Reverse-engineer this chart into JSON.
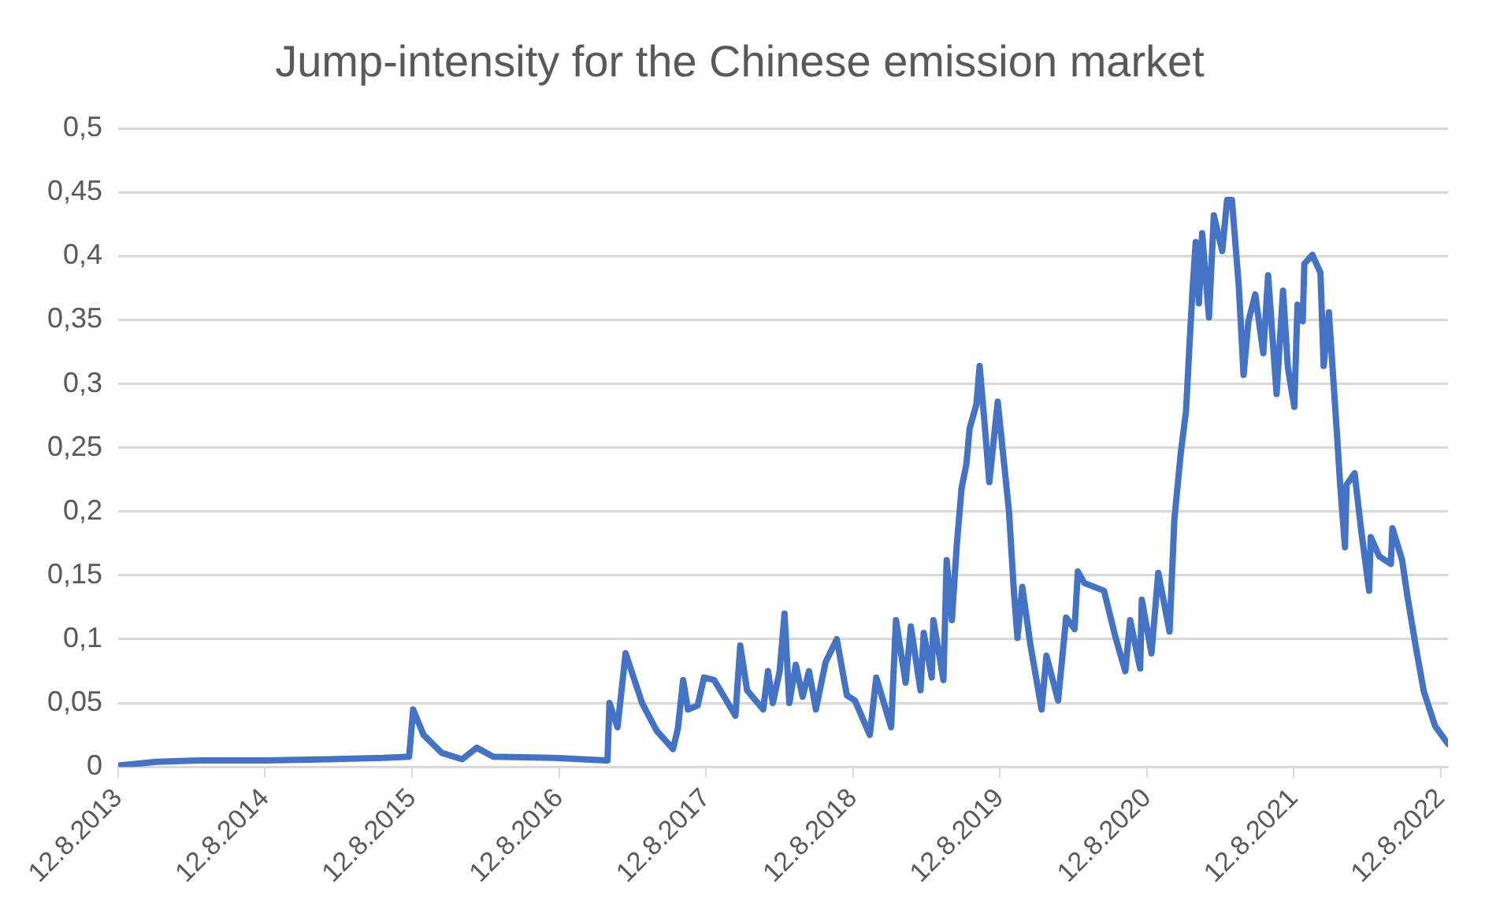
{
  "chart_data": {
    "type": "line",
    "title": "Jump-intensity for the Chinese emission market",
    "color": "#4472c4",
    "grid": "y",
    "x": [
      "2013-08-12",
      "2013-11-15",
      "2014-03-01",
      "2014-08-12",
      "2015-01-15",
      "2015-06-01",
      "2015-08-05",
      "2015-08-15",
      "2015-09-10",
      "2015-10-25",
      "2015-12-15",
      "2016-01-20",
      "2016-03-01",
      "2016-08-01",
      "2016-12-10",
      "2016-12-15",
      "2017-01-04",
      "2017-01-24",
      "2017-03-06",
      "2017-04-12",
      "2017-05-22",
      "2017-06-03",
      "2017-06-16",
      "2017-06-28",
      "2017-07-22",
      "2017-08-07",
      "2017-09-01",
      "2017-09-26",
      "2017-10-24",
      "2017-11-05",
      "2017-11-22",
      "2018-01-01",
      "2018-01-13",
      "2018-01-25",
      "2018-02-11",
      "2018-02-23",
      "2018-03-07",
      "2018-03-23",
      "2018-04-09",
      "2018-04-25",
      "2018-05-12",
      "2018-06-05",
      "2018-07-03",
      "2018-07-28",
      "2018-08-17",
      "2018-09-23",
      "2018-10-09",
      "2018-11-15",
      "2018-11-27",
      "2018-12-21",
      "2019-01-03",
      "2019-01-27",
      "2019-02-04",
      "2019-02-24",
      "2019-02-28",
      "2019-03-25",
      "2019-04-02",
      "2019-04-15",
      "2019-04-27",
      "2019-05-09",
      "2019-05-21",
      "2019-05-29",
      "2019-06-15",
      "2019-06-23",
      "2019-07-05",
      "2019-07-17",
      "2019-08-07",
      "2019-09-04",
      "2019-09-16",
      "2019-09-25",
      "2019-10-07",
      "2019-10-27",
      "2019-11-24",
      "2019-12-06",
      "2020-01-04",
      "2020-01-24",
      "2020-02-14",
      "2020-02-22",
      "2020-03-09",
      "2020-04-27",
      "2020-05-26",
      "2020-06-19",
      "2020-07-01",
      "2020-07-26",
      "2020-07-30",
      "2020-08-23",
      "2020-09-09",
      "2020-10-07",
      "2020-10-19",
      "2020-11-04",
      "2020-11-17",
      "2020-11-25",
      "2020-12-03",
      "2020-12-11",
      "2020-12-19",
      "2020-12-27",
      "2021-01-13",
      "2021-01-25",
      "2021-02-15",
      "2021-02-27",
      "2021-03-11",
      "2021-03-28",
      "2021-04-09",
      "2021-04-21",
      "2021-05-08",
      "2021-05-28",
      "2021-06-09",
      "2021-06-30",
      "2021-07-16",
      "2021-07-28",
      "2021-08-13",
      "2021-08-21",
      "2021-09-03",
      "2021-09-07",
      "2021-09-27",
      "2021-10-17",
      "2021-10-25",
      "2021-11-07",
      "2021-11-27",
      "2021-12-05",
      "2021-12-17",
      "2021-12-21",
      "2022-01-10",
      "2022-01-26",
      "2022-02-15",
      "2022-02-19",
      "2022-03-12",
      "2022-04-10",
      "2022-04-14",
      "2022-05-08",
      "2022-05-21",
      "2022-06-10",
      "2022-07-01",
      "2022-07-29",
      "2022-08-30"
    ],
    "values": [
      0.001,
      0.004,
      0.005,
      0.005,
      0.006,
      0.007,
      0.008,
      0.045,
      0.025,
      0.011,
      0.006,
      0.015,
      0.008,
      0.007,
      0.005,
      0.05,
      0.031,
      0.089,
      0.05,
      0.028,
      0.014,
      0.03,
      0.068,
      0.045,
      0.048,
      0.07,
      0.068,
      0.055,
      0.04,
      0.095,
      0.06,
      0.045,
      0.075,
      0.05,
      0.075,
      0.12,
      0.05,
      0.08,
      0.055,
      0.075,
      0.045,
      0.082,
      0.1,
      0.056,
      0.052,
      0.025,
      0.07,
      0.031,
      0.115,
      0.066,
      0.11,
      0.06,
      0.105,
      0.07,
      0.115,
      0.068,
      0.162,
      0.115,
      0.173,
      0.218,
      0.237,
      0.265,
      0.284,
      0.314,
      0.27,
      0.223,
      0.286,
      0.2,
      0.138,
      0.101,
      0.141,
      0.096,
      0.045,
      0.087,
      0.052,
      0.117,
      0.108,
      0.153,
      0.144,
      0.138,
      0.101,
      0.075,
      0.115,
      0.077,
      0.131,
      0.089,
      0.152,
      0.106,
      0.194,
      0.246,
      0.279,
      0.327,
      0.373,
      0.411,
      0.363,
      0.418,
      0.352,
      0.432,
      0.404,
      0.444,
      0.444,
      0.377,
      0.307,
      0.349,
      0.37,
      0.324,
      0.385,
      0.292,
      0.373,
      0.313,
      0.282,
      0.362,
      0.349,
      0.394,
      0.401,
      0.387,
      0.314,
      0.356,
      0.261,
      0.221,
      0.172,
      0.221,
      0.23,
      0.186,
      0.138,
      0.18,
      0.165,
      0.159,
      0.187,
      0.162,
      0.134,
      0.096,
      0.059,
      0.032,
      0.018
    ],
    "xlim": [
      "2013-08-12",
      "2022-08-30"
    ],
    "xticks": [
      {
        "value": "2013-08-12",
        "label": "12.8.2013"
      },
      {
        "value": "2014-08-12",
        "label": "12.8.2014"
      },
      {
        "value": "2015-08-12",
        "label": "12.8.2015"
      },
      {
        "value": "2016-08-12",
        "label": "12.8.2016"
      },
      {
        "value": "2017-08-12",
        "label": "12.8.2017"
      },
      {
        "value": "2018-08-12",
        "label": "12.8.2018"
      },
      {
        "value": "2019-08-12",
        "label": "12.8.2019"
      },
      {
        "value": "2020-08-12",
        "label": "12.8.2020"
      },
      {
        "value": "2021-08-12",
        "label": "12.8.2021"
      },
      {
        "value": "2022-08-12",
        "label": "12.8.2022"
      }
    ],
    "ylim": [
      0,
      0.5
    ],
    "yticks": [
      0,
      {
        "value": 0.05,
        "label": "0,05"
      },
      {
        "value": 0.1,
        "label": "0,1"
      },
      {
        "value": 0.15,
        "label": "0,15"
      },
      {
        "value": 0.2,
        "label": "0,2"
      },
      {
        "value": 0.25,
        "label": "0,25"
      },
      {
        "value": 0.3,
        "label": "0,3"
      },
      {
        "value": 0.35,
        "label": "0,35"
      },
      {
        "value": 0.4,
        "label": "0,4"
      },
      {
        "value": 0.45,
        "label": "0,45"
      },
      {
        "value": 0.5,
        "label": "0,5"
      }
    ]
  }
}
